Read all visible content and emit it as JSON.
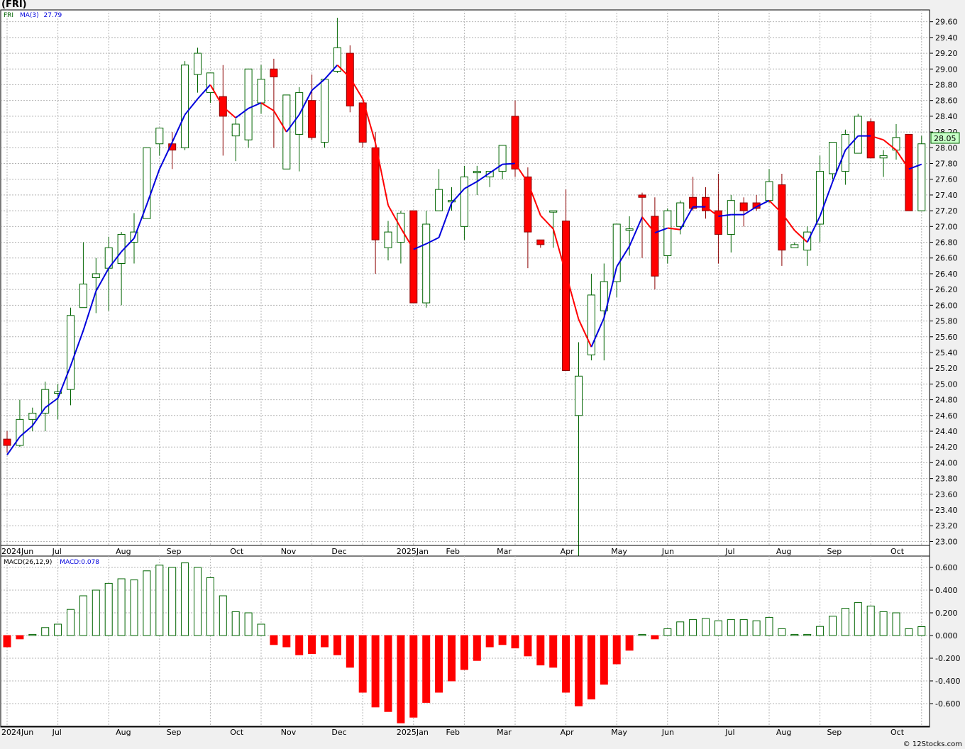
{
  "header": {
    "symbol": "(FRI)"
  },
  "credit": "© 12Stocks.com",
  "colors": {
    "background": "#ffffff",
    "up_candle_fill": "#ffffff",
    "up_candle_stroke": "#006400",
    "down_candle_fill": "#ff0000",
    "down_candle_stroke": "#8b0000",
    "ma_rising": "#0000dd",
    "ma_falling": "#ff0000",
    "macd_positive": "#006400",
    "macd_negative": "#ff0000",
    "grid": "#b4b4b4",
    "last_price_box": "#c8ffc8"
  },
  "chart_data": [
    {
      "type": "candlestick",
      "legend": {
        "symbol": "FRI",
        "ma_label": "MA(3)",
        "ma_value": "27.79"
      },
      "last_price_label": "28.05",
      "ylim": [
        22.95,
        29.75
      ],
      "y_ticks": [
        "29.60",
        "29.40",
        "29.20",
        "29.00",
        "28.80",
        "28.60",
        "28.40",
        "28.20",
        "28.00",
        "27.80",
        "27.60",
        "27.40",
        "27.20",
        "27.00",
        "26.80",
        "26.60",
        "26.40",
        "26.20",
        "26.00",
        "25.80",
        "25.60",
        "25.40",
        "25.20",
        "25.00",
        "24.80",
        "24.60",
        "24.40",
        "24.20",
        "24.00",
        "23.80",
        "23.60",
        "23.40",
        "23.20",
        "23.00"
      ],
      "month_labels": [
        {
          "label": "2024Jun",
          "week": 0
        },
        {
          "label": "Jul",
          "week": 4
        },
        {
          "label": "Aug",
          "week": 9
        },
        {
          "label": "Sep",
          "week": 13
        },
        {
          "label": "Oct",
          "week": 18
        },
        {
          "label": "Nov",
          "week": 22
        },
        {
          "label": "Dec",
          "week": 26
        },
        {
          "label": "2025Jan",
          "week": 31
        },
        {
          "label": "Feb",
          "week": 35
        },
        {
          "label": "Mar",
          "week": 39
        },
        {
          "label": "Apr",
          "week": 44
        },
        {
          "label": "May",
          "week": 48
        },
        {
          "label": "Jun",
          "week": 52
        },
        {
          "label": "Jul",
          "week": 57
        },
        {
          "label": "Aug",
          "week": 61
        },
        {
          "label": "Sep",
          "week": 65
        },
        {
          "label": "Oct",
          "week": 70
        }
      ],
      "ohlc": [
        [
          24.3,
          24.4,
          24.13,
          24.22
        ],
        [
          24.22,
          24.8,
          24.2,
          24.55
        ],
        [
          24.55,
          24.7,
          24.4,
          24.63
        ],
        [
          24.63,
          25.03,
          24.4,
          24.93
        ],
        [
          24.9,
          25.0,
          24.55,
          24.9
        ],
        [
          24.93,
          25.97,
          24.73,
          25.87
        ],
        [
          25.97,
          26.8,
          25.97,
          26.27
        ],
        [
          26.35,
          26.6,
          25.9,
          26.4
        ],
        [
          26.47,
          26.87,
          25.93,
          26.73
        ],
        [
          26.53,
          26.93,
          26.0,
          26.9
        ],
        [
          26.8,
          27.17,
          26.53,
          26.93
        ],
        [
          27.1,
          28.0,
          27.1,
          28.0
        ],
        [
          28.05,
          28.23,
          27.9,
          28.25
        ],
        [
          28.05,
          28.2,
          27.73,
          27.97
        ],
        [
          28.0,
          29.1,
          27.97,
          29.05
        ],
        [
          28.93,
          29.27,
          28.7,
          29.2
        ],
        [
          28.7,
          28.93,
          28.57,
          28.95
        ],
        [
          28.65,
          29.05,
          27.9,
          28.4
        ],
        [
          28.15,
          28.37,
          27.83,
          28.3
        ],
        [
          28.1,
          29.0,
          28.0,
          29.0
        ],
        [
          28.57,
          29.05,
          28.43,
          28.87
        ],
        [
          29.0,
          29.13,
          28.0,
          28.9
        ],
        [
          27.73,
          28.67,
          27.73,
          28.67
        ],
        [
          28.17,
          28.77,
          27.7,
          28.7
        ],
        [
          28.6,
          28.93,
          28.1,
          28.13
        ],
        [
          28.07,
          28.87,
          28.0,
          28.87
        ],
        [
          28.97,
          29.65,
          28.95,
          29.27
        ],
        [
          29.2,
          29.3,
          28.45,
          28.53
        ],
        [
          28.57,
          28.57,
          28.0,
          28.07
        ],
        [
          28.0,
          28.2,
          26.4,
          26.83
        ],
        [
          26.73,
          27.07,
          26.57,
          26.93
        ],
        [
          26.8,
          27.2,
          26.53,
          27.17
        ],
        [
          27.2,
          27.2,
          26.03,
          26.03
        ],
        [
          26.03,
          27.2,
          25.97,
          27.03
        ],
        [
          27.2,
          27.73,
          27.2,
          27.47
        ],
        [
          27.33,
          27.5,
          27.2,
          27.33
        ],
        [
          27.0,
          27.77,
          26.83,
          27.63
        ],
        [
          27.7,
          27.77,
          27.4,
          27.7
        ],
        [
          27.63,
          27.7,
          27.5,
          27.7
        ],
        [
          27.7,
          28.03,
          27.6,
          28.03
        ],
        [
          28.4,
          28.6,
          27.63,
          27.73
        ],
        [
          27.63,
          27.75,
          26.47,
          26.93
        ],
        [
          26.83,
          26.83,
          26.73,
          26.77
        ],
        [
          27.2,
          27.2,
          26.73,
          27.2
        ],
        [
          27.07,
          27.47,
          25.17,
          25.17
        ],
        [
          24.6,
          25.53,
          22.75,
          25.1
        ],
        [
          25.37,
          26.4,
          25.3,
          26.13
        ],
        [
          25.93,
          26.53,
          25.3,
          26.3
        ],
        [
          26.3,
          27.03,
          26.1,
          27.03
        ],
        [
          26.97,
          27.13,
          26.63,
          26.97
        ],
        [
          27.4,
          27.43,
          26.6,
          27.37
        ],
        [
          27.13,
          27.37,
          26.2,
          26.37
        ],
        [
          26.63,
          27.23,
          26.53,
          27.2
        ],
        [
          27.0,
          27.33,
          26.9,
          27.3
        ],
        [
          27.37,
          27.63,
          27.2,
          27.23
        ],
        [
          27.37,
          27.5,
          27.1,
          27.2
        ],
        [
          27.2,
          27.67,
          26.53,
          26.9
        ],
        [
          26.9,
          27.4,
          26.67,
          27.33
        ],
        [
          27.3,
          27.37,
          27.0,
          27.2
        ],
        [
          27.3,
          27.4,
          27.2,
          27.23
        ],
        [
          27.33,
          27.73,
          27.3,
          27.57
        ],
        [
          27.53,
          27.67,
          26.5,
          26.7
        ],
        [
          26.73,
          26.8,
          26.73,
          26.77
        ],
        [
          26.7,
          27.0,
          26.5,
          26.93
        ],
        [
          27.03,
          27.9,
          26.8,
          27.7
        ],
        [
          27.67,
          28.07,
          27.6,
          28.07
        ],
        [
          27.7,
          28.23,
          27.53,
          28.17
        ],
        [
          27.93,
          28.43,
          27.93,
          28.4
        ],
        [
          28.33,
          28.37,
          27.87,
          27.87
        ],
        [
          27.87,
          27.97,
          27.63,
          27.9
        ],
        [
          27.97,
          28.3,
          27.85,
          28.13
        ],
        [
          28.17,
          28.17,
          27.2,
          27.2
        ],
        [
          27.2,
          28.15,
          27.2,
          28.05
        ]
      ],
      "ma3": [
        24.1,
        24.33,
        24.47,
        24.7,
        24.82,
        25.23,
        25.68,
        26.18,
        26.47,
        26.68,
        26.85,
        27.28,
        27.73,
        28.07,
        28.42,
        28.62,
        28.8,
        28.52,
        28.38,
        28.5,
        28.57,
        28.47,
        28.2,
        28.42,
        28.73,
        28.87,
        29.05,
        28.89,
        28.62,
        28.06,
        27.27,
        26.98,
        26.71,
        26.78,
        26.86,
        27.3,
        27.48,
        27.57,
        27.68,
        27.79,
        27.8,
        27.56,
        27.14,
        26.97,
        26.4,
        25.82,
        25.47,
        25.84,
        26.49,
        26.75,
        27.12,
        26.92,
        26.98,
        26.96,
        27.25,
        27.25,
        27.13,
        27.15,
        27.15,
        27.25,
        27.33,
        27.17,
        26.95,
        26.8,
        27.13,
        27.57,
        27.97,
        28.15,
        28.15,
        28.1,
        27.97,
        27.73,
        27.79
      ]
    },
    {
      "type": "bar",
      "legend": {
        "label": "MACD(26,12,9)",
        "value_label": "MACD:0.078"
      },
      "ylim": [
        -0.8,
        0.7
      ],
      "y_ticks": [
        "0.600",
        "0.400",
        "0.200",
        "0.000",
        "-0.200",
        "-0.400",
        "-0.600"
      ],
      "values": [
        -0.1,
        -0.03,
        0.01,
        0.07,
        0.1,
        0.23,
        0.35,
        0.4,
        0.46,
        0.5,
        0.49,
        0.57,
        0.62,
        0.6,
        0.64,
        0.6,
        0.51,
        0.35,
        0.21,
        0.2,
        0.1,
        -0.08,
        -0.1,
        -0.17,
        -0.16,
        -0.1,
        -0.17,
        -0.28,
        -0.5,
        -0.63,
        -0.67,
        -0.77,
        -0.72,
        -0.59,
        -0.5,
        -0.4,
        -0.3,
        -0.22,
        -0.1,
        -0.08,
        -0.11,
        -0.18,
        -0.26,
        -0.28,
        -0.5,
        -0.62,
        -0.56,
        -0.43,
        -0.25,
        -0.13,
        0.01,
        -0.03,
        0.06,
        0.12,
        0.14,
        0.15,
        0.13,
        0.14,
        0.14,
        0.13,
        0.16,
        0.06,
        0.01,
        0.01,
        0.08,
        0.17,
        0.24,
        0.29,
        0.26,
        0.21,
        0.2,
        0.06,
        0.078
      ]
    }
  ]
}
